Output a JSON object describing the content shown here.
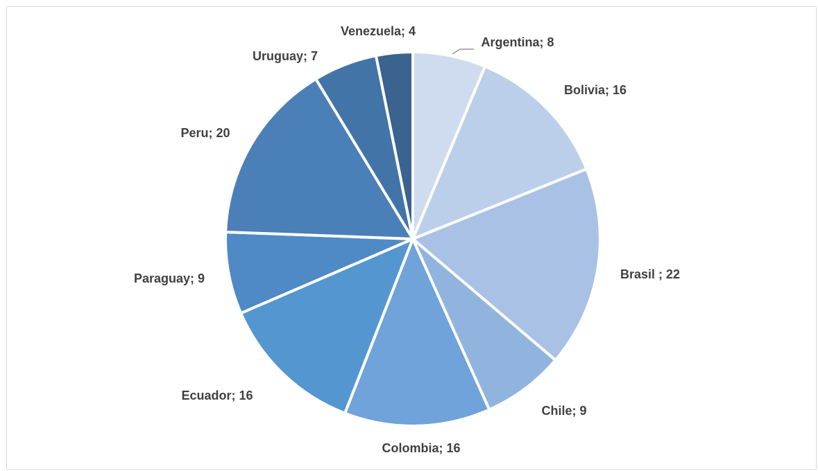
{
  "chart_data": {
    "type": "pie",
    "title": "",
    "start_angle_deg": 0,
    "direction": "clockwise",
    "legend": "none",
    "data_labels": "category; value",
    "slices": [
      {
        "label": "Argentina; 8",
        "category": "Argentina",
        "value": 8,
        "color": "#cfdbee"
      },
      {
        "label": "Bolivia; 16",
        "category": "Bolivia",
        "value": 16,
        "color": "#bccfea"
      },
      {
        "label": "Brasil ; 22",
        "category": "Brasil",
        "value": 22,
        "color": "#a9c1e5"
      },
      {
        "label": "Chile; 9",
        "category": "Chile",
        "value": 9,
        "color": "#91b4df"
      },
      {
        "label": "Colombia; 16",
        "category": "Colombia",
        "value": 16,
        "color": "#6fa3d9"
      },
      {
        "label": "Ecuador; 16",
        "category": "Ecuador",
        "value": 16,
        "color": "#5496cf"
      },
      {
        "label": "Paraguay; 9",
        "category": "Paraguay",
        "value": 9,
        "color": "#508ac6"
      },
      {
        "label": "Peru; 20",
        "category": "Peru",
        "value": 20,
        "color": "#4b7fb8"
      },
      {
        "label": "Uruguay; 7",
        "category": "Uruguay",
        "value": 7,
        "color": "#4374a8"
      },
      {
        "label": "Venezuela; 4",
        "category": "Venezuela",
        "value": 4,
        "color": "#3a6390"
      }
    ]
  }
}
